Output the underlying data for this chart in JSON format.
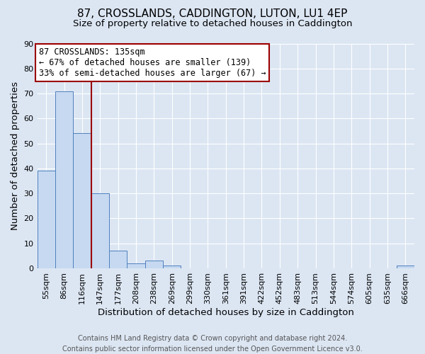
{
  "title": "87, CROSSLANDS, CADDINGTON, LUTON, LU1 4EP",
  "subtitle": "Size of property relative to detached houses in Caddington",
  "xlabel": "Distribution of detached houses by size in Caddington",
  "ylabel": "Number of detached properties",
  "bin_labels": [
    "55sqm",
    "86sqm",
    "116sqm",
    "147sqm",
    "177sqm",
    "208sqm",
    "238sqm",
    "269sqm",
    "299sqm",
    "330sqm",
    "361sqm",
    "391sqm",
    "422sqm",
    "452sqm",
    "483sqm",
    "513sqm",
    "544sqm",
    "574sqm",
    "605sqm",
    "635sqm",
    "666sqm"
  ],
  "bar_values": [
    39,
    71,
    54,
    30,
    7,
    2,
    3,
    1,
    0,
    0,
    0,
    0,
    0,
    0,
    0,
    0,
    0,
    0,
    0,
    0,
    1
  ],
  "bar_color": "#c6d9f1",
  "bar_edge_color": "#4f81bd",
  "vline_index": 2,
  "vline_color": "#9b0000",
  "annotation_text": "87 CROSSLANDS: 135sqm\n← 67% of detached houses are smaller (139)\n33% of semi-detached houses are larger (67) →",
  "annotation_box_color": "white",
  "annotation_box_edge_color": "#9b0000",
  "ylim": [
    0,
    90
  ],
  "yticks": [
    0,
    10,
    20,
    30,
    40,
    50,
    60,
    70,
    80,
    90
  ],
  "footer_line1": "Contains HM Land Registry data © Crown copyright and database right 2024.",
  "footer_line2": "Contains public sector information licensed under the Open Government Licence v3.0.",
  "background_color": "#dce6f3",
  "plot_background_color": "#dce6f3",
  "grid_color": "#ffffff",
  "title_fontsize": 11,
  "subtitle_fontsize": 9.5,
  "axis_label_fontsize": 9.5,
  "tick_fontsize": 8,
  "annotation_fontsize": 8.5,
  "footer_fontsize": 7
}
